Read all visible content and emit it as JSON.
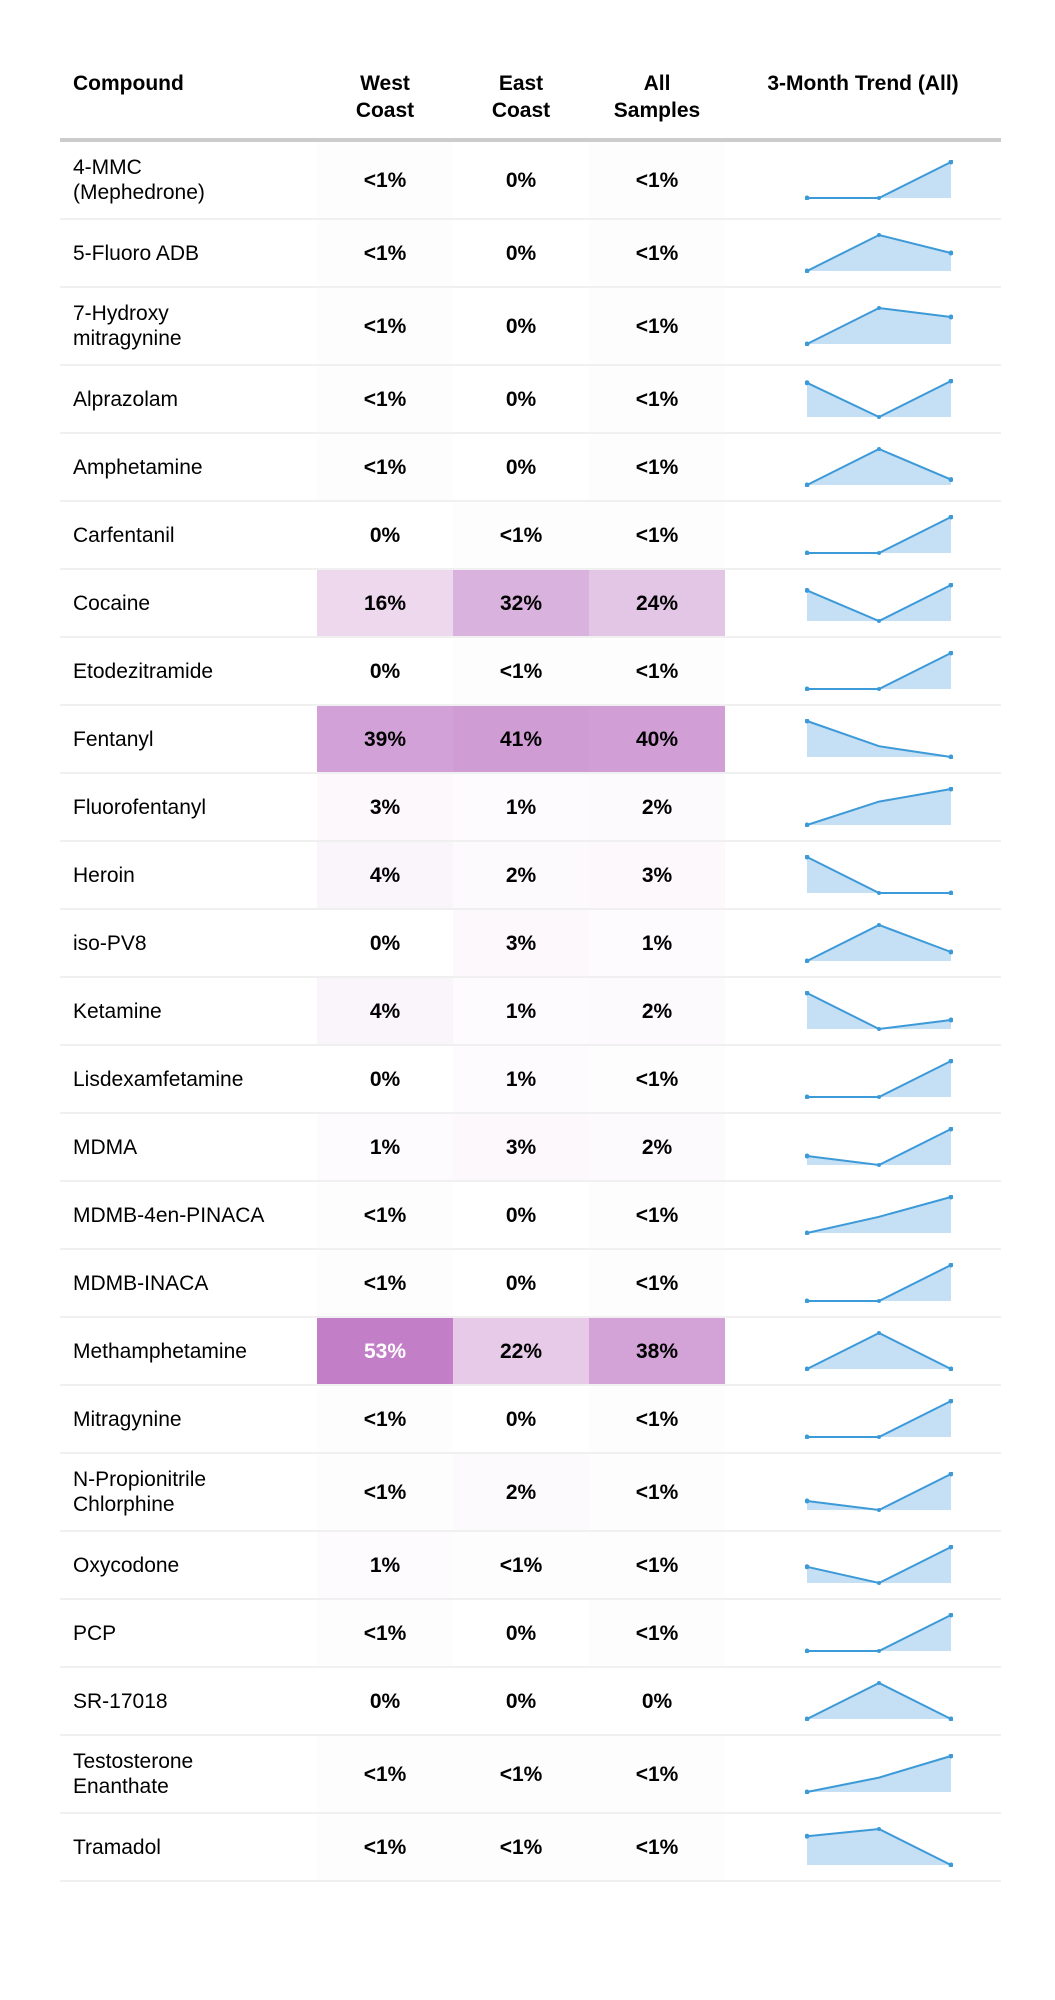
{
  "header": {
    "compound": "Compound",
    "west": "West Coast",
    "east": "East Coast",
    "all": "All Samples",
    "trend": "3-Month Trend (All)"
  },
  "colors": {
    "heat_max": "#c27fc8",
    "spark_line": "#3d9ad8",
    "spark_fill": "#c5dff4"
  },
  "rows": [
    {
      "name": "4-MMC (Mephedrone)",
      "west": "<1%",
      "east": "0%",
      "all": "<1%",
      "trend": [
        0,
        0,
        1
      ]
    },
    {
      "name": "5-Fluoro ADB",
      "west": "<1%",
      "east": "0%",
      "all": "<1%",
      "trend": [
        0,
        1,
        0.5
      ]
    },
    {
      "name": "7-Hydroxy mitragynine",
      "west": "<1%",
      "east": "0%",
      "all": "<1%",
      "trend": [
        0,
        1,
        0.75
      ]
    },
    {
      "name": "Alprazolam",
      "west": "<1%",
      "east": "0%",
      "all": "<1%",
      "trend": [
        0.95,
        0,
        1
      ]
    },
    {
      "name": "Amphetamine",
      "west": "<1%",
      "east": "0%",
      "all": "<1%",
      "trend": [
        0,
        1,
        0.15
      ]
    },
    {
      "name": "Carfentanil",
      "west": "0%",
      "east": "<1%",
      "all": "<1%",
      "trend": [
        0,
        0,
        1
      ]
    },
    {
      "name": "Cocaine",
      "west": "16%",
      "east": "32%",
      "all": "24%",
      "trend": [
        0.85,
        0,
        1
      ]
    },
    {
      "name": "Etodezitramide",
      "west": "0%",
      "east": "<1%",
      "all": "<1%",
      "trend": [
        0,
        0,
        1
      ]
    },
    {
      "name": "Fentanyl",
      "west": "39%",
      "east": "41%",
      "all": "40%",
      "trend": [
        1,
        0.3,
        0
      ]
    },
    {
      "name": "Fluorofentanyl",
      "west": "3%",
      "east": "1%",
      "all": "2%",
      "trend": [
        0,
        0.65,
        1
      ]
    },
    {
      "name": "Heroin",
      "west": "4%",
      "east": "2%",
      "all": "3%",
      "trend": [
        1,
        0,
        0
      ]
    },
    {
      "name": "iso-PV8",
      "west": "0%",
      "east": "3%",
      "all": "1%",
      "trend": [
        0,
        1,
        0.25
      ]
    },
    {
      "name": "Ketamine",
      "west": "4%",
      "east": "1%",
      "all": "2%",
      "trend": [
        1,
        0,
        0.25
      ]
    },
    {
      "name": "Lisdexamfetamine",
      "west": "0%",
      "east": "1%",
      "all": "<1%",
      "trend": [
        0,
        0,
        1
      ]
    },
    {
      "name": "MDMA",
      "west": "1%",
      "east": "3%",
      "all": "2%",
      "trend": [
        0.25,
        0,
        1
      ]
    },
    {
      "name": "MDMB-4en-PINACA",
      "west": "<1%",
      "east": "0%",
      "all": "<1%",
      "trend": [
        0,
        0.45,
        1
      ]
    },
    {
      "name": "MDMB-INACA",
      "west": "<1%",
      "east": "0%",
      "all": "<1%",
      "trend": [
        0,
        0,
        1
      ]
    },
    {
      "name": "Methamphetamine",
      "west": "53%",
      "east": "22%",
      "all": "38%",
      "trend": [
        0,
        1,
        0
      ]
    },
    {
      "name": "Mitragynine",
      "west": "<1%",
      "east": "0%",
      "all": "<1%",
      "trend": [
        0,
        0,
        1
      ]
    },
    {
      "name": "N-Propionitrile Chlorphine",
      "west": "<1%",
      "east": "2%",
      "all": "<1%",
      "trend": [
        0.25,
        0,
        1
      ]
    },
    {
      "name": "Oxycodone",
      "west": "1%",
      "east": "<1%",
      "all": "<1%",
      "trend": [
        0.45,
        0,
        1
      ]
    },
    {
      "name": "PCP",
      "west": "<1%",
      "east": "0%",
      "all": "<1%",
      "trend": [
        0,
        0,
        1
      ]
    },
    {
      "name": "SR-17018",
      "west": "0%",
      "east": "0%",
      "all": "0%",
      "trend": [
        0,
        1,
        0
      ]
    },
    {
      "name": "Testosterone Enanthate",
      "west": "<1%",
      "east": "<1%",
      "all": "<1%",
      "trend": [
        0,
        0.4,
        1
      ]
    },
    {
      "name": "Tramadol",
      "west": "<1%",
      "east": "<1%",
      "all": "<1%",
      "trend": [
        0.8,
        1,
        0
      ]
    }
  ]
}
